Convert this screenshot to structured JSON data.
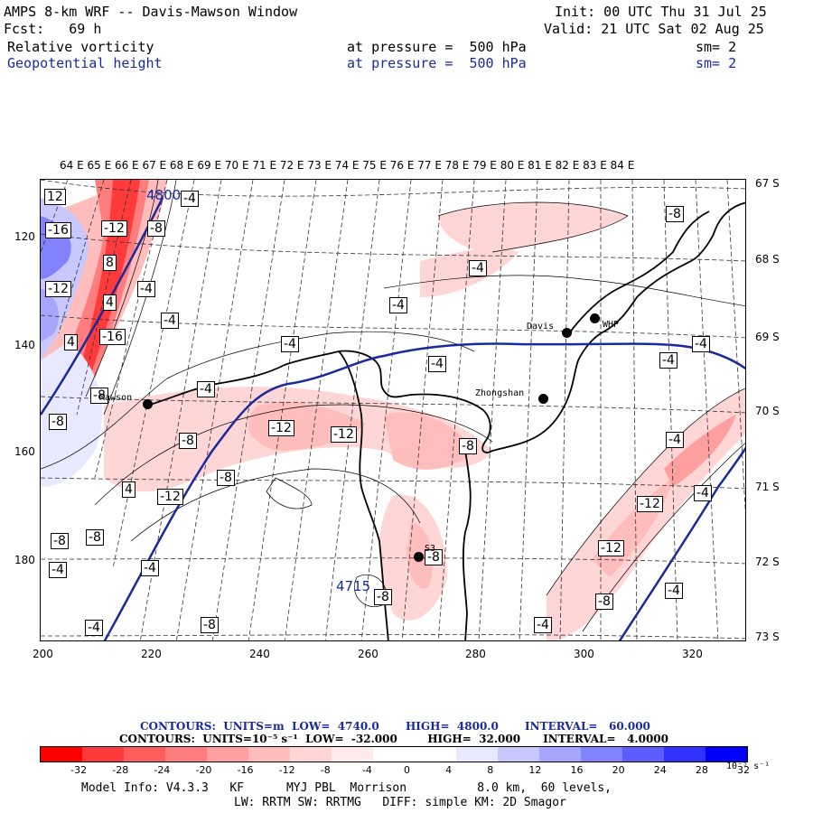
{
  "header": {
    "title": "AMPS 8-km WRF -- Davis-Mawson Window",
    "fcst": "Fcst:   69 h",
    "init": "Init: 00 UTC Thu 31 Jul 25",
    "valid": "Valid: 21 UTC Sat 02 Aug 25",
    "field1": "Relative vorticity",
    "field1_pressure": "at pressure =  500 hPa",
    "field1_sm": "sm= 2",
    "field2": "Geopotential height",
    "field2_pressure": "at pressure =  500 hPa",
    "field2_sm": "sm= 2"
  },
  "colors": {
    "height_contour": "#1a2a9c",
    "negative": "#ff0000",
    "positive": "#0000ff"
  },
  "map": {
    "top_ticks": "64 E 65 E 66 E 67 E 68 E 69 E 70 E 71 E 72 E 73 E 74 E 75 E 76 E 77 E 78 E 79 E 80 E 81 E 82 E 83 E 84 E",
    "right_ticks": [
      "67 S",
      "68 S",
      "69 S",
      "70 S",
      "71 S",
      "72 S",
      "73 S"
    ],
    "left_ticks": [
      "120",
      "140",
      "160",
      "180"
    ],
    "bottom_ticks": [
      "200",
      "220",
      "240",
      "260",
      "280",
      "300",
      "320"
    ],
    "stations": [
      {
        "name": "Davis"
      },
      {
        "name": "WHP"
      },
      {
        "name": "Zhongshan"
      },
      {
        "name": "Mawson"
      },
      {
        "name": "S3"
      }
    ],
    "height_labels": [
      "4800",
      "4715"
    ],
    "contour_labels": [
      "12",
      "-4",
      "-16",
      "-12",
      "-8",
      "8",
      "-12",
      "-4",
      "-8",
      "4",
      "-4",
      "-16",
      "-4",
      "4",
      "-4",
      "-4",
      "-4",
      "-4",
      "-4",
      "-4",
      "-8",
      "-8",
      "-12",
      "-12",
      "-8",
      "-8",
      "-12",
      "-8",
      "-4",
      "4",
      "-12",
      "-8",
      "-8",
      "-12",
      "-4",
      "-4",
      "-4",
      "-8",
      "-8",
      "-4",
      "-4",
      "-8",
      "-8",
      "-4"
    ]
  },
  "footer": {
    "line1_label": "CONTOURS:  UNITS=m  LOW=  4740.0       HIGH=  4800.0       INTERVAL=   60.000",
    "line2_label": "CONTOURS:  UNITS=10⁻⁵ s⁻¹  LOW=  -32.000        HIGH=  32.000      INTERVAL=   4.0000",
    "colorbar_labels": [
      "-32",
      "-28",
      "-24",
      "-20",
      "-16",
      "-12",
      "-8",
      "-4",
      "0",
      "4",
      "8",
      "12",
      "16",
      "20",
      "24",
      "28",
      "32"
    ],
    "colorbar_unit": "10⁻⁵ s⁻¹",
    "colorbar_colors": [
      "#ff0000",
      "#ff3a3a",
      "#ff5c5c",
      "#ff7d7d",
      "#ff9f9f",
      "#ffbdbd",
      "#ffd6d6",
      "#ffebeb",
      "#ffffff",
      "#ffffff",
      "#e8e8ff",
      "#c8c8ff",
      "#a6a6ff",
      "#8282ff",
      "#5c5cff",
      "#3030ff",
      "#0000ff"
    ],
    "model_info": "Model Info: V4.3.3   KF      MYJ PBL  Morrison          8.0 km,  60 levels,",
    "model_info2": "LW: RRTM SW: RRTMG   DIFF: simple KM: 2D Smagor"
  }
}
